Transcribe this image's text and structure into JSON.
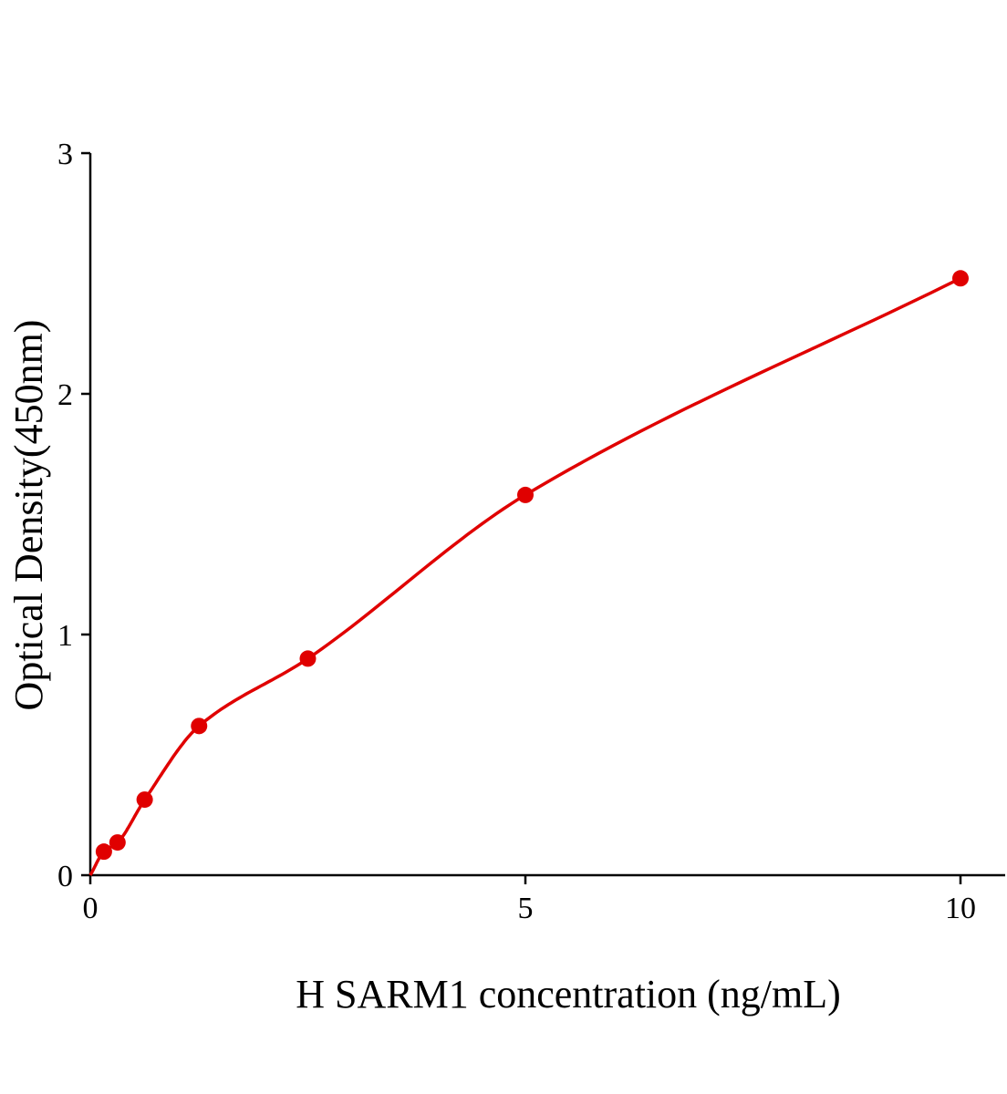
{
  "chart_data": {
    "type": "scatter",
    "title": "",
    "xlabel": "H SARM1 concentration (ng/mL)",
    "ylabel": "Optical Density(450nm)",
    "xlim": [
      0,
      10.5
    ],
    "ylim": [
      0,
      3
    ],
    "x_ticks": [
      "0",
      "5",
      "10"
    ],
    "y_ticks": [
      "0",
      "1",
      "2",
      "3"
    ],
    "grid": false,
    "legend": "none",
    "color": "#e00000",
    "series": [
      {
        "x": [
          0.156,
          0.3125,
          0.625,
          1.25,
          2.5,
          5,
          10
        ],
        "y": [
          0.098,
          0.136,
          0.314,
          0.62,
          0.9,
          1.58,
          2.48
        ]
      }
    ],
    "fit_curve": true
  }
}
